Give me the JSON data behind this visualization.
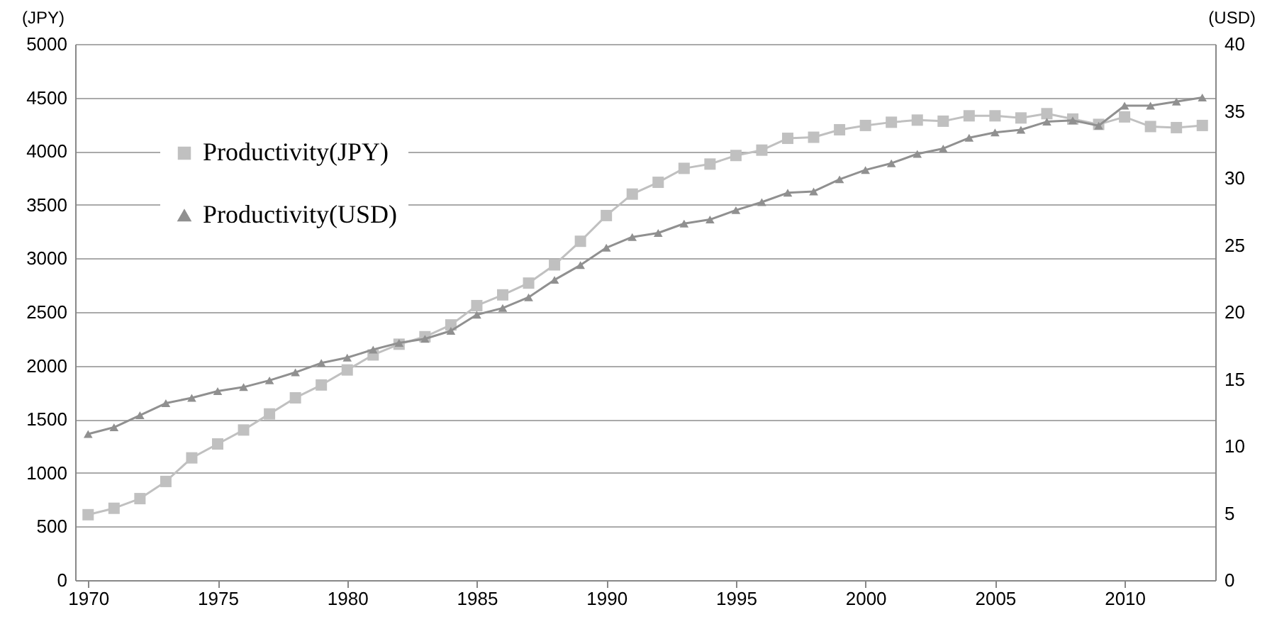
{
  "chart_data": {
    "type": "line",
    "ylabel": "(JPY)",
    "y2label": "(USD)",
    "x": [
      1970,
      1971,
      1972,
      1973,
      1974,
      1975,
      1976,
      1977,
      1978,
      1979,
      1980,
      1981,
      1982,
      1983,
      1984,
      1985,
      1986,
      1987,
      1988,
      1989,
      1990,
      1991,
      1992,
      1993,
      1994,
      1995,
      1996,
      1997,
      1998,
      1999,
      2000,
      2001,
      2002,
      2003,
      2004,
      2005,
      2006,
      2007,
      2008,
      2009,
      2010,
      2011,
      2012,
      2013
    ],
    "series": [
      {
        "name": "Productivity(JPY)",
        "color": "#c0c0c0",
        "marker": "square",
        "values": [
          610,
          670,
          760,
          920,
          1140,
          1270,
          1400,
          1550,
          1700,
          1820,
          1960,
          2100,
          2200,
          2270,
          2380,
          2560,
          2660,
          2770,
          2940,
          3160,
          3400,
          3600,
          3710,
          3840,
          3880,
          3960,
          4010,
          4120,
          4130,
          4200,
          4240,
          4270,
          4290,
          4280,
          4330,
          4330,
          4310,
          4350,
          4300,
          4250,
          4320,
          4230,
          4220,
          4240
        ]
      },
      {
        "name": "Productivity(USD)",
        "color": "#909090",
        "marker": "triangle",
        "axis": "y2",
        "values": [
          10.9,
          11.4,
          12.3,
          13.2,
          13.6,
          14.1,
          14.4,
          14.9,
          15.5,
          16.2,
          16.6,
          17.2,
          17.7,
          18.0,
          18.6,
          19.8,
          20.3,
          21.1,
          22.4,
          23.5,
          24.8,
          25.6,
          25.9,
          26.6,
          26.9,
          27.6,
          28.2,
          28.9,
          29.0,
          29.9,
          30.6,
          31.1,
          31.8,
          32.2,
          33.0,
          33.4,
          33.6,
          34.2,
          34.3,
          33.9,
          35.4,
          35.4,
          35.7,
          36.0
        ]
      }
    ],
    "xlim": [
      1969.5,
      2013.5
    ],
    "xticks": [
      1970,
      1975,
      1980,
      1985,
      1990,
      1995,
      2000,
      2005,
      2010
    ],
    "ylim": [
      0,
      5000
    ],
    "yticks": [
      0,
      500,
      1000,
      1500,
      2000,
      2500,
      3000,
      3500,
      4000,
      4500,
      5000
    ],
    "y2lim": [
      0,
      40
    ],
    "y2ticks": [
      0,
      5,
      10,
      15,
      20,
      25,
      30,
      35,
      40
    ],
    "grid": "y",
    "legend": "top left",
    "line_style": "solid"
  }
}
